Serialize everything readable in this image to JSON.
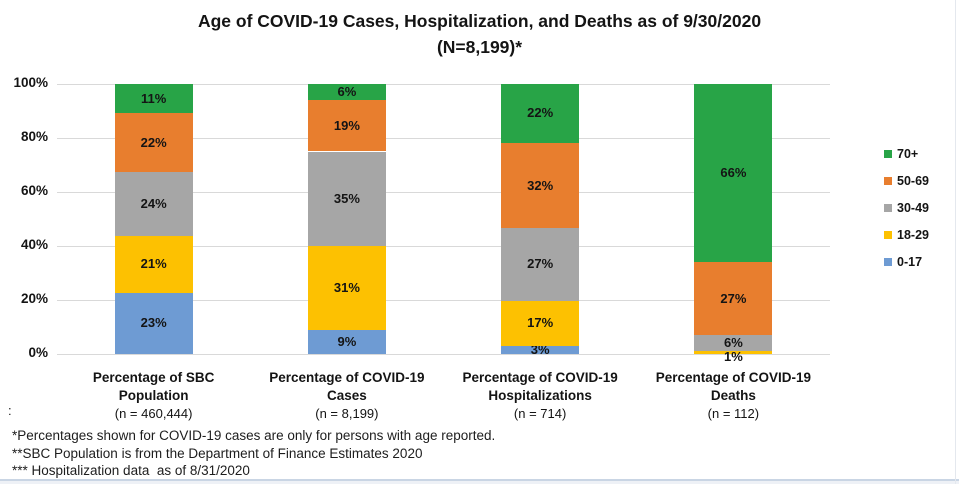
{
  "title": {
    "line1": "Age of COVID-19 Cases, Hospitalization, and Deaths as of 9/30/2020",
    "line2": "(N=8,199)*"
  },
  "colors": {
    "green": "#28a447",
    "orange": "#e87e2e",
    "gray": "#a6a6a6",
    "yellow": "#fdc101",
    "blue": "#6e9bd3",
    "gridline": "#d9d9d9",
    "bottom_edge_line": "#c9d5e4",
    "bottom_edge_pale": "#eef1f6"
  },
  "chart_data": {
    "type": "bar",
    "subtype": "stacked-100",
    "title": "Age of COVID-19 Cases, Hospitalization, and Deaths as of 9/30/2020 (N=8,199)*",
    "categories": [
      {
        "label_lines": [
          "Percentage of SBC",
          "Population"
        ],
        "n_label": "(n = 460,444)"
      },
      {
        "label_lines": [
          "Percentage of COVID-19",
          "Cases"
        ],
        "n_label": "(n = 8,199)"
      },
      {
        "label_lines": [
          "Percentage of COVID-19",
          "Hospitalizations"
        ],
        "n_label": "(n = 714)"
      },
      {
        "label_lines": [
          "Percentage of COVID-19",
          "Deaths"
        ],
        "n_label": "(n = 112)"
      }
    ],
    "series": [
      {
        "name": "0-17",
        "color_key": "blue",
        "values": [
          23,
          9,
          3,
          0
        ]
      },
      {
        "name": "18-29",
        "color_key": "yellow",
        "values": [
          21,
          31,
          17,
          1
        ]
      },
      {
        "name": "30-49",
        "color_key": "gray",
        "values": [
          24,
          35,
          27,
          6
        ]
      },
      {
        "name": "50-69",
        "color_key": "orange",
        "values": [
          22,
          19,
          32,
          27
        ]
      },
      {
        "name": "70+",
        "color_key": "green",
        "values": [
          11,
          6,
          22,
          66
        ]
      }
    ],
    "value_suffix": "%",
    "yticks": [
      "0%",
      "20%",
      "40%",
      "60%",
      "80%",
      "100%"
    ],
    "ylim": [
      0,
      100
    ],
    "grid": true,
    "legend_position": "right",
    "legend_order": [
      "70+",
      "50-69",
      "30-49",
      "18-29",
      "0-17"
    ]
  },
  "footnotes": {
    "colon": ":",
    "lines": [
      "*Percentages shown for COVID-19 cases are only for persons with age reported.",
      "**SBC Population is from the Department of Finance Estimates 2020",
      "*** Hospitalization data  as of 8/31/2020"
    ]
  }
}
